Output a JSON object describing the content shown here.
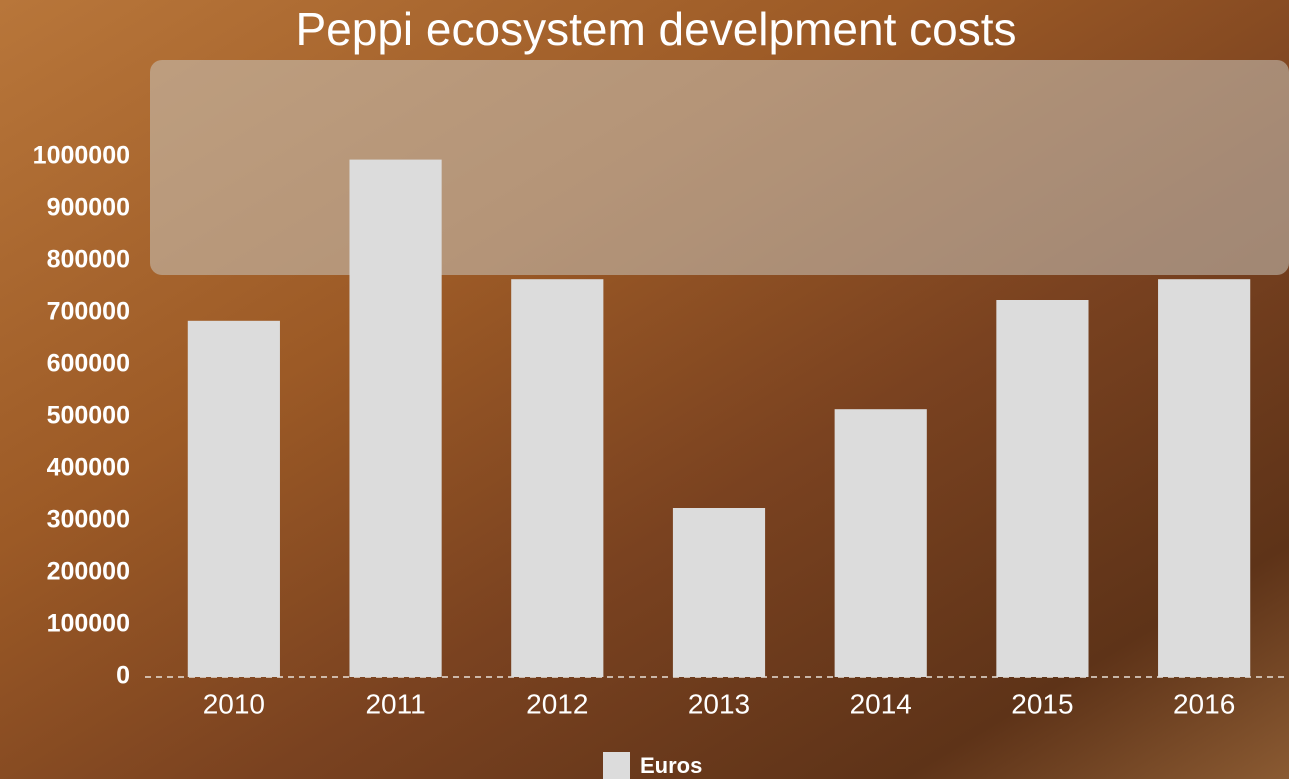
{
  "chart_data": {
    "type": "bar",
    "title": "Peppi ecosystem develpment costs",
    "categories": [
      "2010",
      "2011",
      "2012",
      "2013",
      "2014",
      "2015",
      "2016"
    ],
    "series": [
      {
        "name": "Euros",
        "color": "#dcdcdc",
        "values": [
          685000,
          995000,
          765000,
          325000,
          515000,
          725000,
          765000
        ]
      }
    ],
    "ylim": [
      0,
      1000000
    ],
    "yticks": [
      0,
      100000,
      200000,
      300000,
      400000,
      500000,
      600000,
      700000,
      800000,
      900000,
      1000000
    ],
    "grid": false,
    "legend": "bottom"
  }
}
